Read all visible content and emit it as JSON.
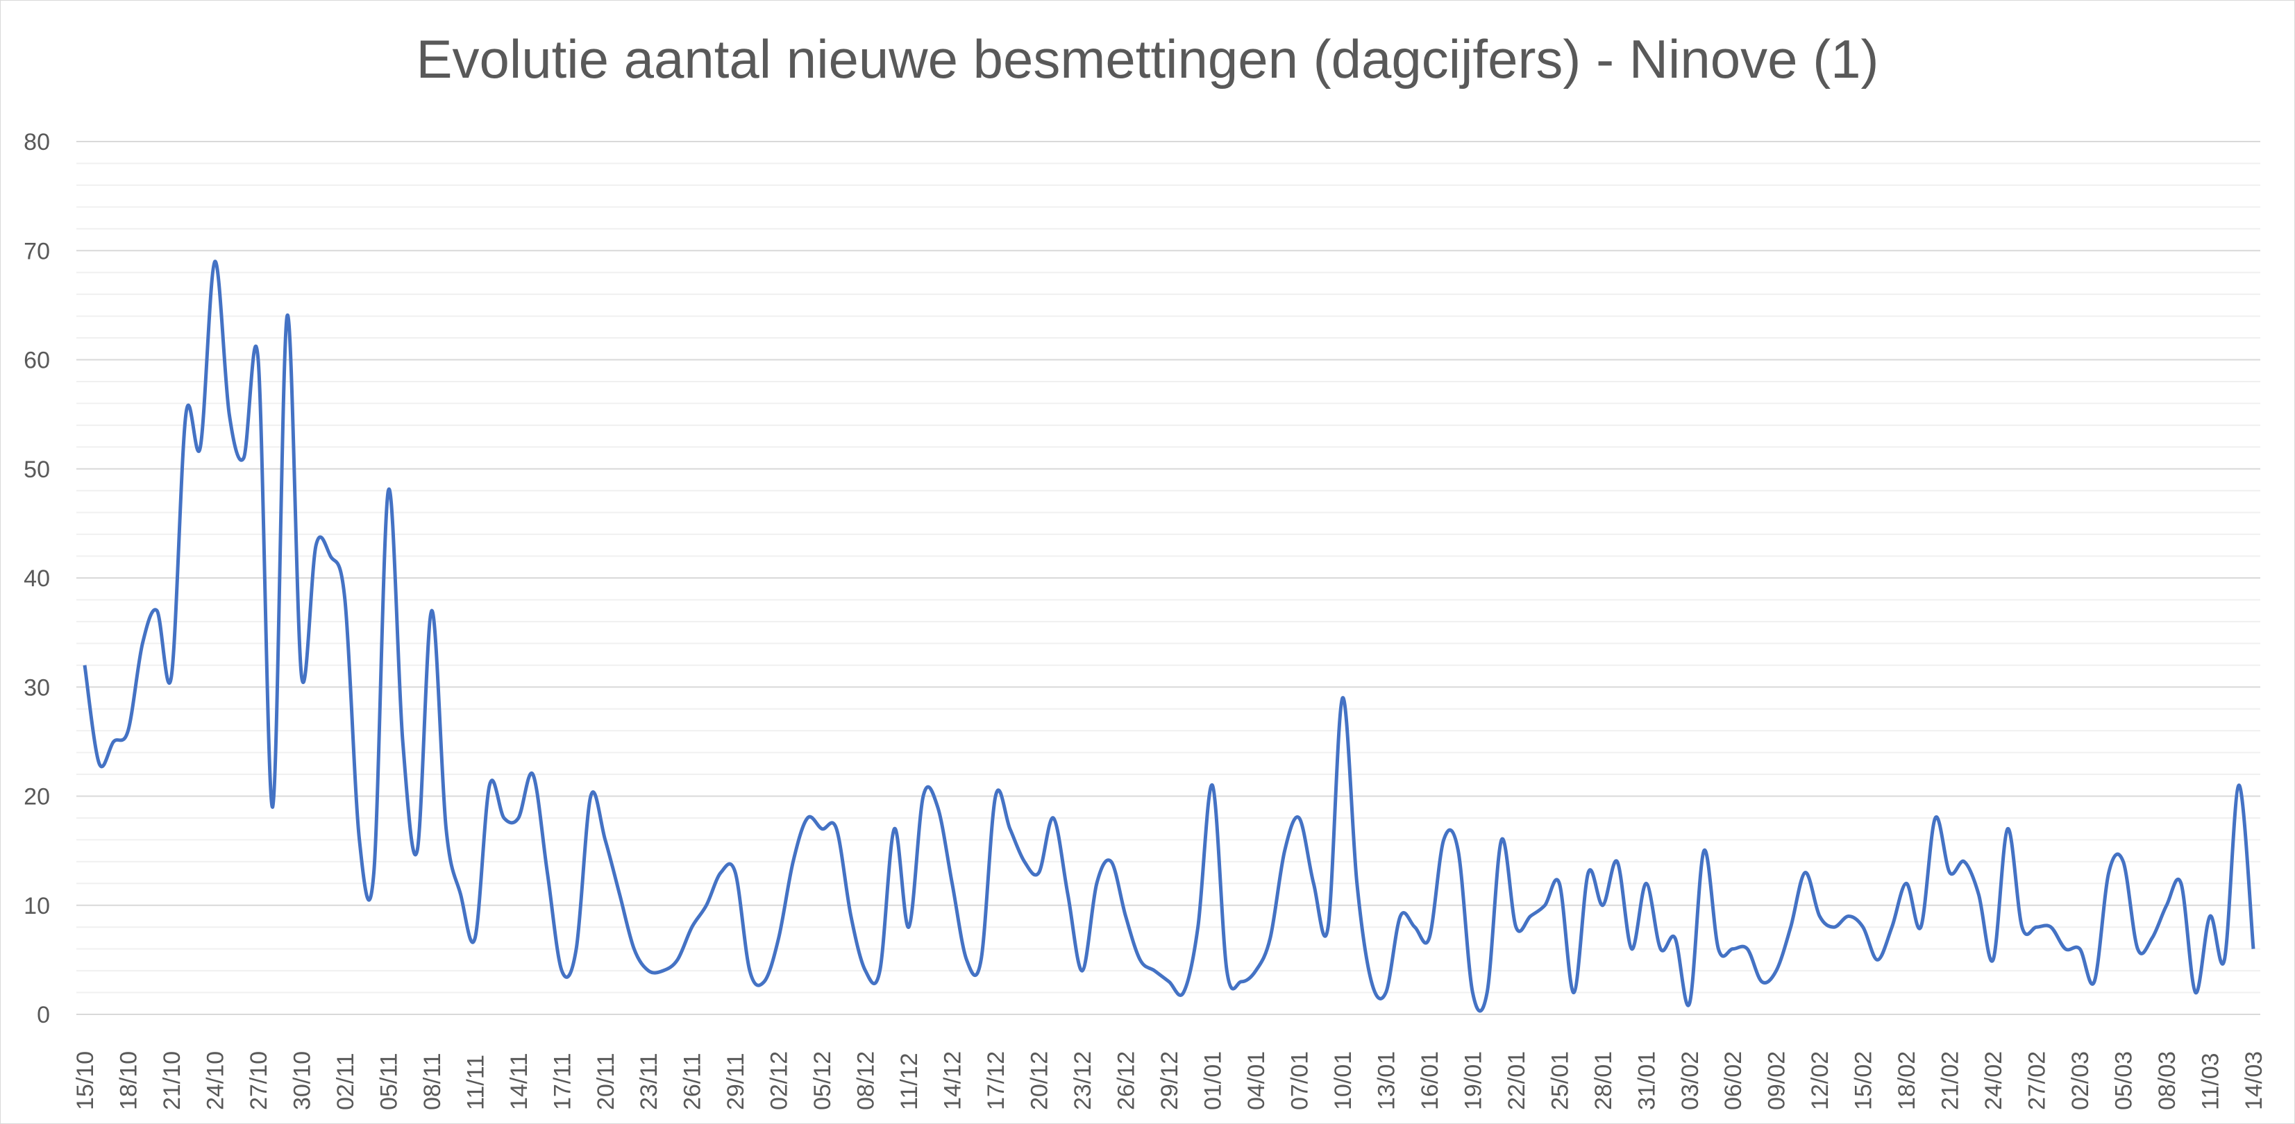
{
  "chart_data": {
    "type": "line",
    "title": "Evolutie aantal nieuwe besmettingen (dagcijfers) - Ninove (1)",
    "xlabel": "",
    "ylabel": "",
    "ylim": [
      0,
      80
    ],
    "y_ticks": [
      0,
      10,
      20,
      30,
      40,
      50,
      60,
      70,
      80
    ],
    "x_tick_labels": [
      "15/10",
      "18/10",
      "21/10",
      "24/10",
      "27/10",
      "30/10",
      "02/11",
      "05/11",
      "08/11",
      "11/11",
      "14/11",
      "17/11",
      "20/11",
      "23/11",
      "26/11",
      "29/11",
      "02/12",
      "05/12",
      "08/12",
      "11/12",
      "14/12",
      "17/12",
      "20/12",
      "23/12",
      "26/12",
      "29/12",
      "01/01",
      "04/01",
      "07/01",
      "10/01",
      "13/01",
      "16/01",
      "19/01",
      "22/01",
      "25/01",
      "28/01",
      "31/01",
      "03/02",
      "06/02",
      "09/02",
      "12/02",
      "15/02",
      "18/02",
      "21/02",
      "24/02",
      "27/02",
      "02/03",
      "05/03",
      "08/03",
      "11/03",
      "14/03"
    ],
    "grid": true,
    "minor_grid": true,
    "legend": "none",
    "series": [
      {
        "color": "#4472c4",
        "x": [
          "15/10",
          "16/10",
          "17/10",
          "18/10",
          "19/10",
          "20/10",
          "21/10",
          "22/10",
          "23/10",
          "24/10",
          "25/10",
          "26/10",
          "27/10",
          "28/10",
          "29/10",
          "30/10",
          "31/10",
          "01/11",
          "02/11",
          "03/11",
          "04/11",
          "05/11",
          "06/11",
          "07/11",
          "08/11",
          "09/11",
          "10/11",
          "11/11",
          "12/11",
          "13/11",
          "14/11",
          "15/11",
          "16/11",
          "17/11",
          "18/11",
          "19/11",
          "20/11",
          "21/11",
          "22/11",
          "23/11",
          "24/11",
          "25/11",
          "26/11",
          "27/11",
          "28/11",
          "29/11",
          "30/11",
          "01/12",
          "02/12",
          "03/12",
          "04/12",
          "05/12",
          "06/12",
          "07/12",
          "08/12",
          "09/12",
          "10/12",
          "11/12",
          "12/12",
          "13/12",
          "14/12",
          "15/12",
          "16/12",
          "17/12",
          "18/12",
          "19/12",
          "20/12",
          "21/12",
          "22/12",
          "23/12",
          "24/12",
          "25/12",
          "26/12",
          "27/12",
          "28/12",
          "29/12",
          "30/12",
          "31/12",
          "01/01",
          "02/01",
          "03/01",
          "04/01",
          "05/01",
          "06/01",
          "07/01",
          "08/01",
          "09/01",
          "10/01",
          "11/01",
          "12/01",
          "13/01",
          "14/01",
          "15/01",
          "16/01",
          "17/01",
          "18/01",
          "19/01",
          "20/01",
          "21/01",
          "22/01",
          "23/01",
          "24/01",
          "25/01",
          "26/01",
          "27/01",
          "28/01",
          "29/01",
          "30/01",
          "31/01",
          "01/02",
          "02/02",
          "03/02",
          "04/02",
          "05/02",
          "06/02",
          "07/02",
          "08/02",
          "09/02",
          "10/02",
          "11/02",
          "12/02",
          "13/02",
          "14/02",
          "15/02",
          "16/02",
          "17/02",
          "18/02",
          "19/02",
          "20/02",
          "21/02",
          "22/02",
          "23/02",
          "24/02",
          "25/02",
          "26/02",
          "27/02",
          "28/02",
          "01/03",
          "02/03",
          "03/03",
          "04/03",
          "05/03",
          "06/03",
          "07/03",
          "08/03",
          "09/03",
          "10/03",
          "11/03",
          "12/03",
          "13/03",
          "14/03"
        ],
        "values": [
          32,
          23,
          25,
          26,
          34,
          37,
          31,
          55,
          52,
          69,
          55,
          51,
          60,
          19,
          64,
          31,
          43,
          42,
          38,
          16,
          13,
          48,
          25,
          15,
          37,
          17,
          11,
          7,
          21,
          18,
          18,
          22,
          13,
          4,
          6,
          20,
          16,
          11,
          6,
          4,
          4,
          5,
          8,
          10,
          13,
          13,
          4,
          3,
          7,
          14,
          18,
          17,
          17,
          9,
          4,
          4,
          17,
          8,
          20,
          19,
          12,
          5,
          5,
          20,
          17,
          14,
          13,
          18,
          11,
          4,
          12,
          14,
          9,
          5,
          4,
          3,
          2,
          8,
          21,
          4,
          3,
          4,
          7,
          15,
          18,
          12,
          8,
          29,
          12,
          3,
          2,
          9,
          8,
          7,
          16,
          15,
          2,
          2,
          16,
          8,
          9,
          10,
          12,
          2,
          13,
          10,
          14,
          6,
          12,
          6,
          7,
          1,
          15,
          6,
          6,
          6,
          3,
          4,
          8,
          13,
          9,
          8,
          9,
          8,
          5,
          8,
          12,
          8,
          18,
          13,
          14,
          11,
          5,
          17,
          8,
          8,
          8,
          6,
          6,
          3,
          13,
          14,
          6,
          7,
          10,
          12,
          2,
          9,
          5,
          21,
          6
        ]
      }
    ]
  }
}
